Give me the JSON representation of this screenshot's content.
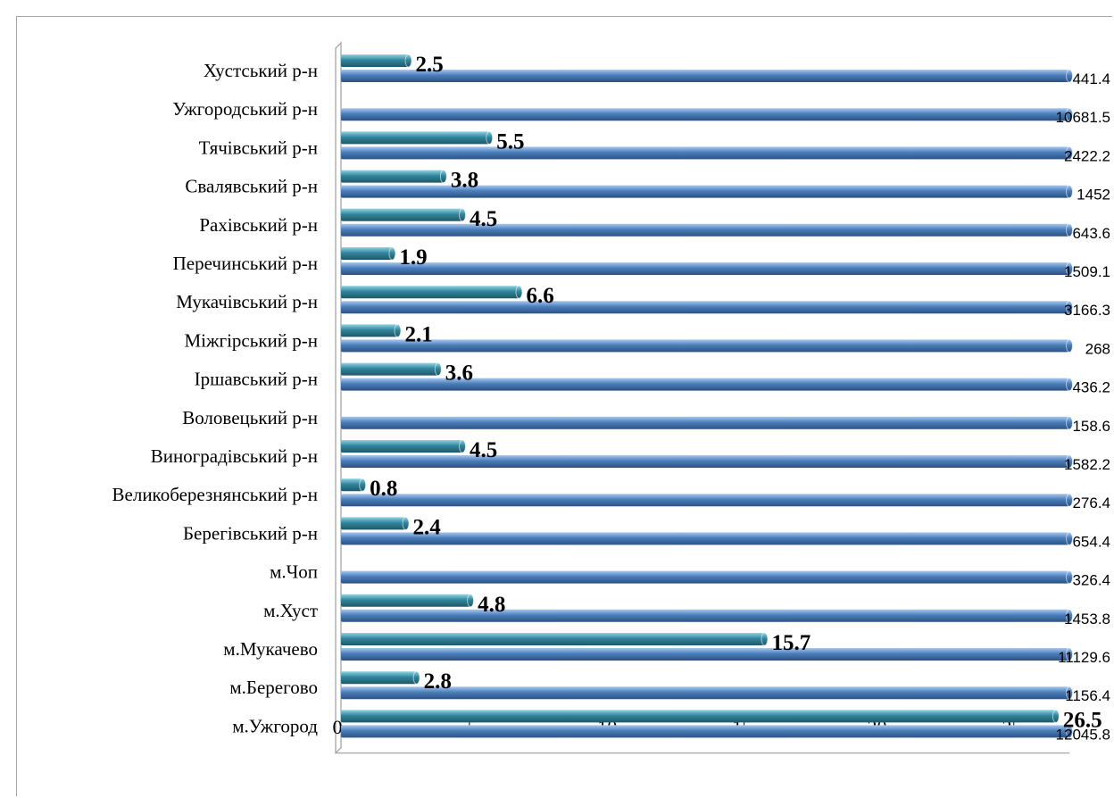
{
  "chart_data": {
    "type": "bar",
    "orientation": "horizontal",
    "categories": [
      "Хустський р-н",
      "Ужгородський р-н",
      "Тячівський р-н",
      "Свалявський р-н",
      "Рахівський р-н",
      "Перечинський р-н",
      "Мукачівський р-н",
      "Міжгірський р-н",
      "Іршавський р-н",
      "Воловецький р-н",
      "Виноградівський р-н",
      "Великоберезнянський р-н",
      "Берегівський р-н",
      "м.Чоп",
      "м.Хуст",
      "м.Мукачево",
      "м.Берегово",
      "м.Ужгород"
    ],
    "series": [
      {
        "values": [
          2.5,
          null,
          5.5,
          3.8,
          4.5,
          1.9,
          6.6,
          2.1,
          3.6,
          null,
          4.5,
          0.8,
          2.4,
          null,
          4.8,
          15.7,
          2.8,
          26.5
        ],
        "labels": [
          "2.5",
          "",
          "5.5",
          "3.8",
          "4.5",
          "1.9",
          "6.6",
          "2.1",
          "3.6",
          "",
          "4.5",
          "0.8",
          "2.4",
          "",
          "4.8",
          "15.7",
          "2.8",
          "26.5"
        ],
        "color": "#31859c"
      },
      {
        "values": [
          441.4,
          10681.5,
          2422.2,
          1452,
          643.6,
          1509.1,
          3166.3,
          268,
          436.2,
          158.6,
          1582.2,
          276.4,
          654.4,
          326.4,
          1453.8,
          11129.6,
          1156.4,
          12045.8
        ],
        "labels": [
          "441.4",
          "10681.5",
          "2422.2",
          "1452",
          "643.6",
          "1509.1",
          "3166.3",
          "268",
          "436.2",
          "158.6",
          "1582.2",
          "276.4",
          "654.4",
          "326.4",
          "1453.8",
          "11129.6",
          "1156.4",
          "12045.8"
        ],
        "color": "#4a7ebb",
        "clipped_at_axis_max": true
      }
    ],
    "x_ticks": [
      "0",
      "5",
      "10",
      "15",
      "20",
      "25"
    ],
    "xlim": [
      0,
      27
    ],
    "grid": false,
    "legend": "none"
  },
  "colors": {
    "series1": "#31859c",
    "series2": "#4a7ebb",
    "axis": "#a6a6a6"
  }
}
